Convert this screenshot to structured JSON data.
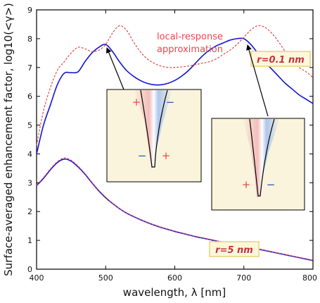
{
  "chart_data": {
    "type": "line",
    "xlabel": "wavelength, λ [nm]",
    "ylabel": "Surface-averaged enhancement factor, log10(<γ>)",
    "xlim": [
      400,
      800
    ],
    "ylim": [
      0,
      9
    ],
    "x_ticks": [
      "400",
      "500",
      "600",
      "700",
      "800"
    ],
    "y_ticks": [
      "0",
      "1",
      "2",
      "3",
      "4",
      "5",
      "6",
      "7",
      "8",
      "9"
    ],
    "grid": false,
    "colors": {
      "nonlocal": "#1414d4",
      "local_response": "#e8474c",
      "label_box_border": "#e8d27a",
      "label_box_fill": "#fdf8dc",
      "inset_bg": "#faf4dc"
    },
    "annotations": {
      "local_response_label": [
        "local-response",
        "approximation"
      ],
      "r_small": "r=0.1 nm",
      "r_large": "r=5 nm",
      "plus": "+",
      "minus": "−"
    },
    "insets": [
      {
        "arrow_from_x": 500,
        "arrow_from_y": 7.8,
        "signs_top": [
          "+",
          "−"
        ],
        "signs_bottom": [
          "−",
          "+"
        ]
      },
      {
        "arrow_from_x": 700,
        "arrow_from_y": 8.0,
        "signs_bottom": [
          "+",
          "−"
        ]
      }
    ],
    "series": [
      {
        "style": "solid",
        "color": "#1414d4",
        "x": [
          400,
          410,
          420,
          430,
          440,
          450,
          460,
          470,
          480,
          490,
          500,
          510,
          520,
          530,
          540,
          550,
          560,
          570,
          580,
          590,
          600,
          610,
          620,
          630,
          640,
          650,
          660,
          670,
          680,
          690,
          700,
          710,
          720,
          730,
          740,
          750,
          760,
          770,
          780,
          790,
          800
        ],
        "y": [
          4.0,
          5.0,
          5.7,
          6.4,
          6.8,
          6.82,
          6.85,
          7.2,
          7.5,
          7.7,
          7.8,
          7.55,
          7.2,
          6.9,
          6.7,
          6.55,
          6.45,
          6.4,
          6.4,
          6.45,
          6.55,
          6.7,
          6.9,
          7.15,
          7.4,
          7.6,
          7.75,
          7.85,
          7.95,
          8.0,
          8.0,
          7.8,
          7.5,
          7.2,
          6.95,
          6.7,
          6.45,
          6.25,
          6.05,
          5.9,
          5.75
        ]
      },
      {
        "style": "dashed",
        "color": "#e8474c",
        "x": [
          400,
          410,
          420,
          430,
          440,
          450,
          460,
          470,
          480,
          490,
          500,
          510,
          520,
          530,
          540,
          550,
          560,
          570,
          580,
          590,
          600,
          610,
          620,
          630,
          640,
          650,
          660,
          670,
          680,
          690,
          700,
          710,
          720,
          730,
          740,
          750,
          760,
          770,
          780,
          790,
          800
        ],
        "y": [
          4.3,
          5.5,
          6.3,
          6.9,
          7.2,
          7.5,
          7.7,
          7.65,
          7.55,
          7.6,
          7.8,
          8.2,
          8.45,
          8.3,
          7.9,
          7.55,
          7.3,
          7.15,
          7.05,
          7.0,
          7.0,
          7.02,
          7.05,
          7.1,
          7.15,
          7.2,
          7.3,
          7.45,
          7.6,
          7.8,
          8.05,
          8.3,
          8.45,
          8.4,
          8.2,
          7.9,
          7.55,
          7.25,
          7.0,
          6.85,
          6.65
        ]
      },
      {
        "style": "solid",
        "color": "#1414d4",
        "x": [
          400,
          410,
          420,
          430,
          440,
          450,
          460,
          470,
          480,
          490,
          500,
          510,
          520,
          530,
          540,
          550,
          560,
          570,
          580,
          590,
          600,
          610,
          620,
          630,
          640,
          650,
          660,
          670,
          680,
          690,
          700,
          710,
          720,
          730,
          740,
          750,
          760,
          770,
          780,
          790,
          800
        ],
        "y": [
          2.9,
          3.15,
          3.45,
          3.7,
          3.82,
          3.75,
          3.55,
          3.3,
          3.0,
          2.72,
          2.48,
          2.28,
          2.1,
          1.95,
          1.83,
          1.72,
          1.62,
          1.53,
          1.45,
          1.38,
          1.31,
          1.25,
          1.19,
          1.13,
          1.08,
          1.03,
          0.98,
          0.93,
          0.88,
          0.84,
          0.8,
          0.75,
          0.7,
          0.65,
          0.6,
          0.55,
          0.5,
          0.45,
          0.4,
          0.35,
          0.3
        ]
      },
      {
        "style": "dashed",
        "color": "#e8474c",
        "x": [
          400,
          410,
          420,
          430,
          440,
          450,
          460,
          470,
          480,
          490,
          500,
          510,
          520,
          530,
          540,
          550,
          560,
          570,
          580,
          590,
          600,
          610,
          620,
          630,
          640,
          650,
          660,
          670,
          680,
          690,
          700,
          710,
          720,
          730,
          740,
          750,
          760,
          770,
          780,
          790,
          800
        ],
        "y": [
          2.92,
          3.18,
          3.48,
          3.73,
          3.86,
          3.78,
          3.58,
          3.32,
          3.02,
          2.74,
          2.5,
          2.29,
          2.11,
          1.96,
          1.84,
          1.73,
          1.63,
          1.54,
          1.46,
          1.39,
          1.32,
          1.26,
          1.2,
          1.14,
          1.09,
          1.04,
          0.99,
          0.94,
          0.89,
          0.85,
          0.81,
          0.76,
          0.71,
          0.66,
          0.61,
          0.56,
          0.51,
          0.46,
          0.41,
          0.36,
          0.31
        ]
      }
    ]
  }
}
